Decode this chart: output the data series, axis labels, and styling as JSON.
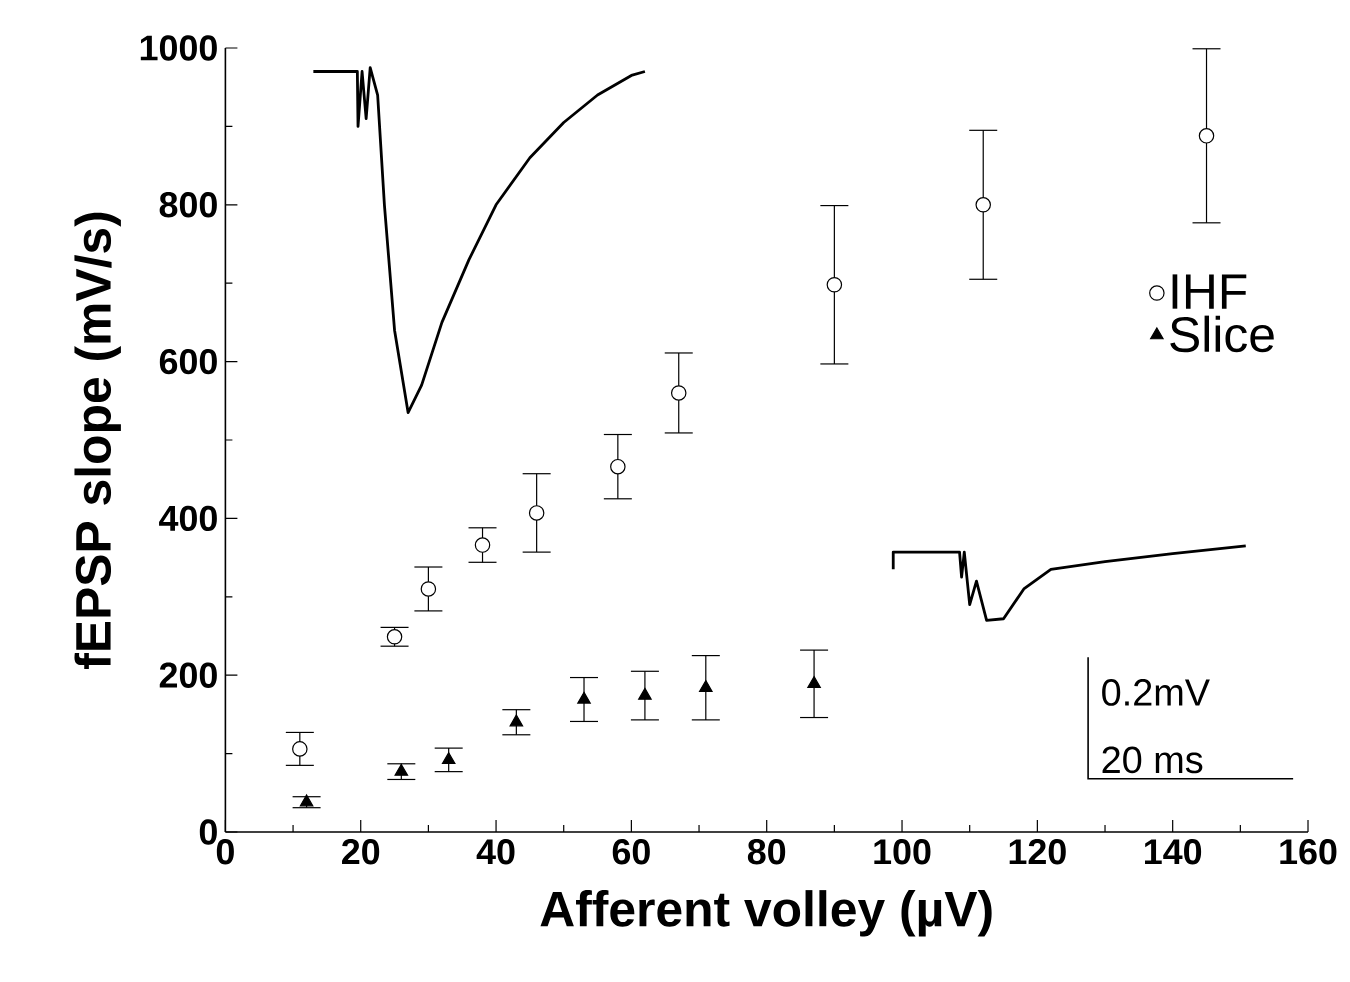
{
  "chart_data": {
    "type": "scatter",
    "xlabel": "Afferent volley (µV)",
    "ylabel": "fEPSP slope (mV/s)",
    "xlim": [
      0,
      160
    ],
    "ylim": [
      0,
      1000
    ],
    "xticks": [
      0,
      20,
      40,
      60,
      80,
      100,
      120,
      140,
      160
    ],
    "yticks": [
      0,
      200,
      400,
      600,
      800,
      1000
    ],
    "legend": "right",
    "annotations": [
      "0.2mV",
      "20 ms"
    ],
    "series": [
      {
        "name": "IHF",
        "color": "#000000",
        "marker": "circle",
        "x": [
          11,
          25,
          30,
          38,
          46,
          58,
          67,
          90,
          112,
          145
        ],
        "values": [
          106,
          249,
          310,
          366,
          407,
          466,
          560,
          698,
          800,
          888
        ],
        "errors": [
          21,
          12,
          28,
          22,
          50,
          41,
          51,
          101,
          95,
          111
        ]
      },
      {
        "name": "Slice",
        "color": "#000000",
        "marker": "triangle",
        "x": [
          12,
          26,
          33,
          43,
          53,
          62,
          71,
          87
        ],
        "values": [
          38,
          77,
          92,
          140,
          169,
          174,
          184,
          189
        ],
        "errors": [
          7,
          10,
          15,
          16,
          28,
          31,
          41,
          43
        ]
      },
      {
        "type": "line",
        "color": "#000000",
        "marker": "none",
        "x": [
          13,
          19.5,
          19.6,
          20.2,
          20.8,
          21.4,
          22.5,
          23.5,
          25,
          27,
          29,
          32,
          36,
          40,
          45,
          50,
          55,
          60,
          62
        ],
        "values": [
          970,
          970,
          900,
          970,
          910,
          975,
          940,
          800,
          640,
          535,
          570,
          650,
          730,
          800,
          860,
          905,
          940,
          965,
          970
        ]
      },
      {
        "type": "line",
        "color": "#000000",
        "marker": "none",
        "x": [
          98.7,
          98.7,
          108.5,
          108.8,
          109.2,
          110,
          111,
          112.5,
          115,
          118,
          122,
          130,
          140,
          150.8
        ],
        "values": [
          335,
          357,
          357,
          325,
          357,
          290,
          320,
          270,
          272,
          310,
          335,
          345,
          355,
          365
        ]
      }
    ]
  }
}
